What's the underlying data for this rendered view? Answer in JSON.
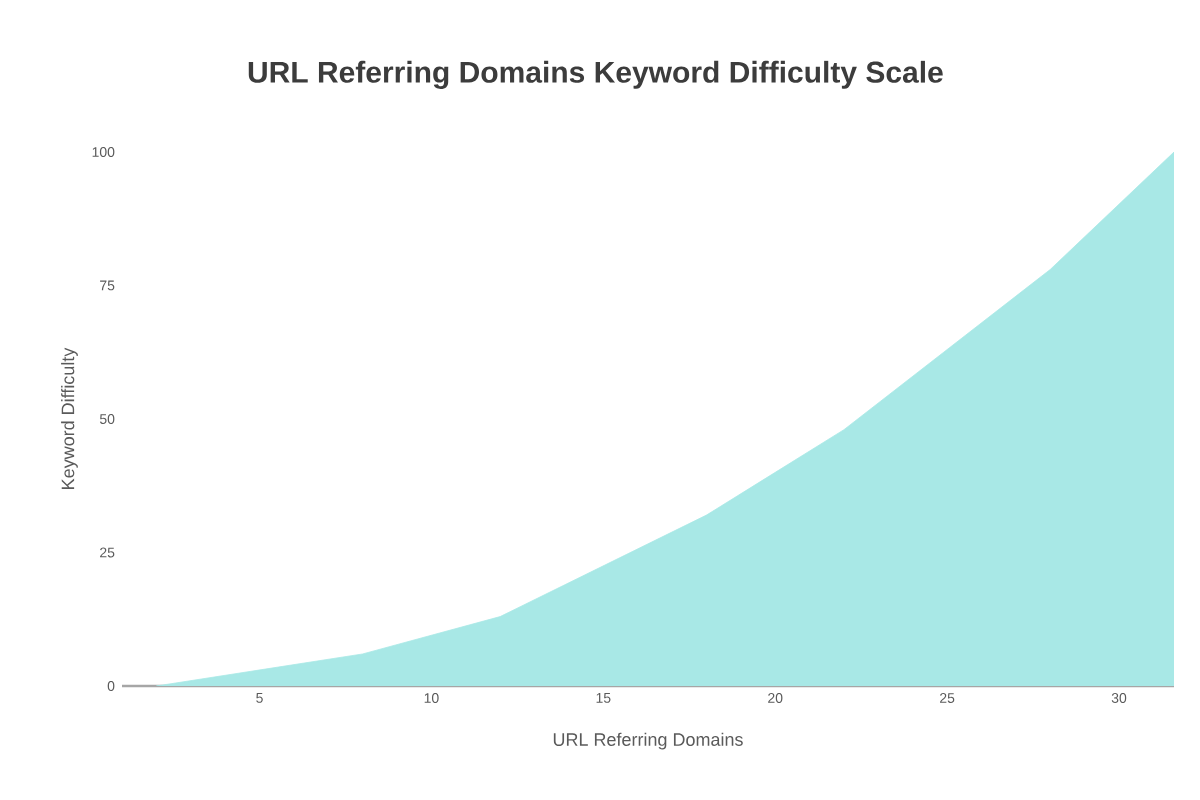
{
  "chart_data": {
    "type": "area",
    "title": "URL Referring Domains Keyword Difficulty Scale",
    "xlabel": "URL Referring Domains",
    "ylabel": "Keyword Difficulty",
    "x": [
      2,
      8,
      12,
      18,
      22,
      28,
      31.6
    ],
    "series": [
      {
        "color": "#a8e8e6",
        "values": [
          0,
          6,
          13,
          32,
          48,
          78,
          100
        ]
      }
    ],
    "xlim": [
      1,
      31.6
    ],
    "ylim": [
      0,
      100
    ],
    "xticks": [
      5,
      10,
      15,
      20,
      25,
      30
    ],
    "yticks": [
      0,
      25,
      50,
      75,
      100
    ]
  }
}
